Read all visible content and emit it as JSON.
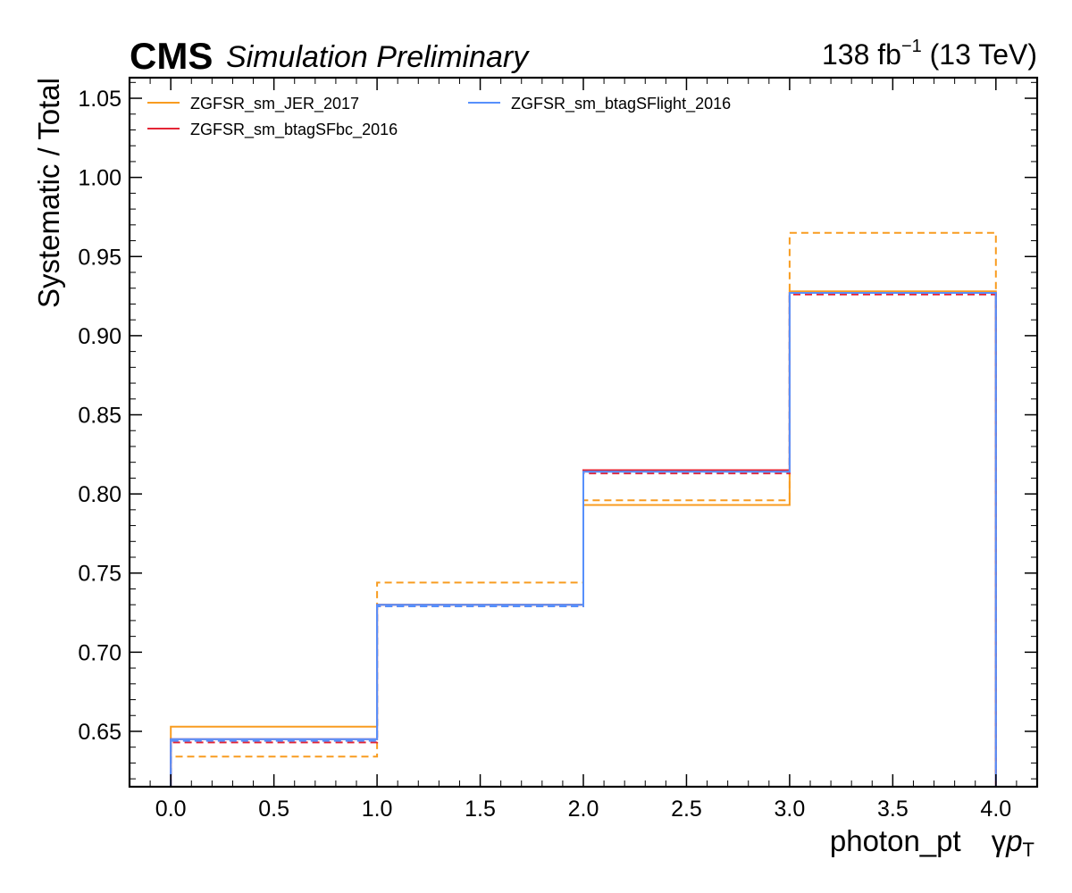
{
  "header": {
    "experiment": "CMS",
    "status": "Simulation Preliminary",
    "lumi_value": "138 fb",
    "lumi_exponent": "−1",
    "energy": " (13 TeV)"
  },
  "axes": {
    "xlabel_main": "photon_pt",
    "xlabel_gamma": "γ",
    "xlabel_p": "p",
    "xlabel_sub": "T",
    "ylabel": "Systematic / Total"
  },
  "chart_data": {
    "type": "line",
    "drawstyle": "step",
    "bin_edges": [
      0,
      1,
      2,
      3,
      4
    ],
    "xlim": [
      -0.2,
      4.2
    ],
    "ylim": [
      0.615,
      1.063
    ],
    "xticks": [
      0.0,
      0.5,
      1.0,
      1.5,
      2.0,
      2.5,
      3.0,
      3.5,
      4.0
    ],
    "xtick_labels": [
      "0.0",
      "0.5",
      "1.0",
      "1.5",
      "2.0",
      "2.5",
      "3.0",
      "3.5",
      "4.0"
    ],
    "yticks": [
      0.65,
      0.7,
      0.75,
      0.8,
      0.85,
      0.9,
      0.95,
      1.0,
      1.05
    ],
    "ytick_labels": [
      "0.65",
      "0.70",
      "0.75",
      "0.80",
      "0.85",
      "0.90",
      "0.95",
      "1.00",
      "1.05"
    ],
    "legend_location": "top-left",
    "legend_columns": 2,
    "series": [
      {
        "name": "ZGFSR_sm_JER_2017",
        "color": "#f89c20",
        "up": [
          0.653,
          0.73,
          0.793,
          0.928
        ],
        "down": [
          0.634,
          0.744,
          0.796,
          0.965
        ]
      },
      {
        "name": "ZGFSR_sm_btagSFbc_2016",
        "color": "#e42536",
        "up": [
          0.645,
          0.73,
          0.815,
          0.927
        ],
        "down": [
          0.643,
          0.729,
          0.813,
          0.926
        ]
      },
      {
        "name": "ZGFSR_sm_btagSFlight_2016",
        "color": "#5790fc",
        "up": [
          0.645,
          0.73,
          0.814,
          0.927
        ],
        "down": [
          0.644,
          0.729,
          0.814,
          0.927
        ]
      }
    ]
  }
}
